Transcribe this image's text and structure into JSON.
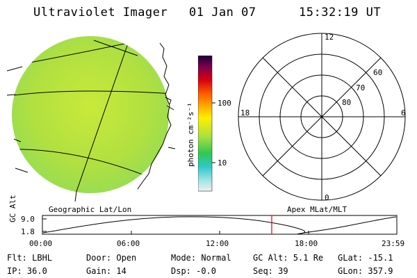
{
  "header": {
    "title": "Ultraviolet Imager",
    "date": "01 Jan 07",
    "time": "15:32:19 UT"
  },
  "colorbar": {
    "label": "photon cm⁻²s⁻¹",
    "tick_100": "100",
    "tick_10": "10"
  },
  "polar": {
    "mlt_top": "12",
    "mlt_left": "18",
    "mlt_right": "6",
    "mlt_bottom": "0",
    "lat_60": "60",
    "lat_70": "70",
    "lat_80": "80"
  },
  "plot": {
    "left_title": "Geographic Lat/Lon",
    "right_title": "Apex MLat/MLT",
    "ylabel": "GC Alt",
    "ytick_top": "9.0",
    "ytick_bottom": "1.8",
    "xticks": [
      "00:00",
      "06:00",
      "12:00",
      "18:00",
      "23:59"
    ]
  },
  "info": {
    "flt": "Flt: LBHL",
    "ip": "IP: 36.0",
    "door": "Door: Open",
    "gain": "Gain: 14",
    "mode": "Mode: Normal",
    "dsp": "Dsp:   -0.0",
    "gcalt": "GC Alt: 5.1 Re",
    "seq": "Seq: 39",
    "glat": "GLat: -15.1",
    "glon": "GLon: 357.9"
  },
  "colors": {
    "earth_fill": "#b8e63a",
    "marker": "#e00000"
  }
}
